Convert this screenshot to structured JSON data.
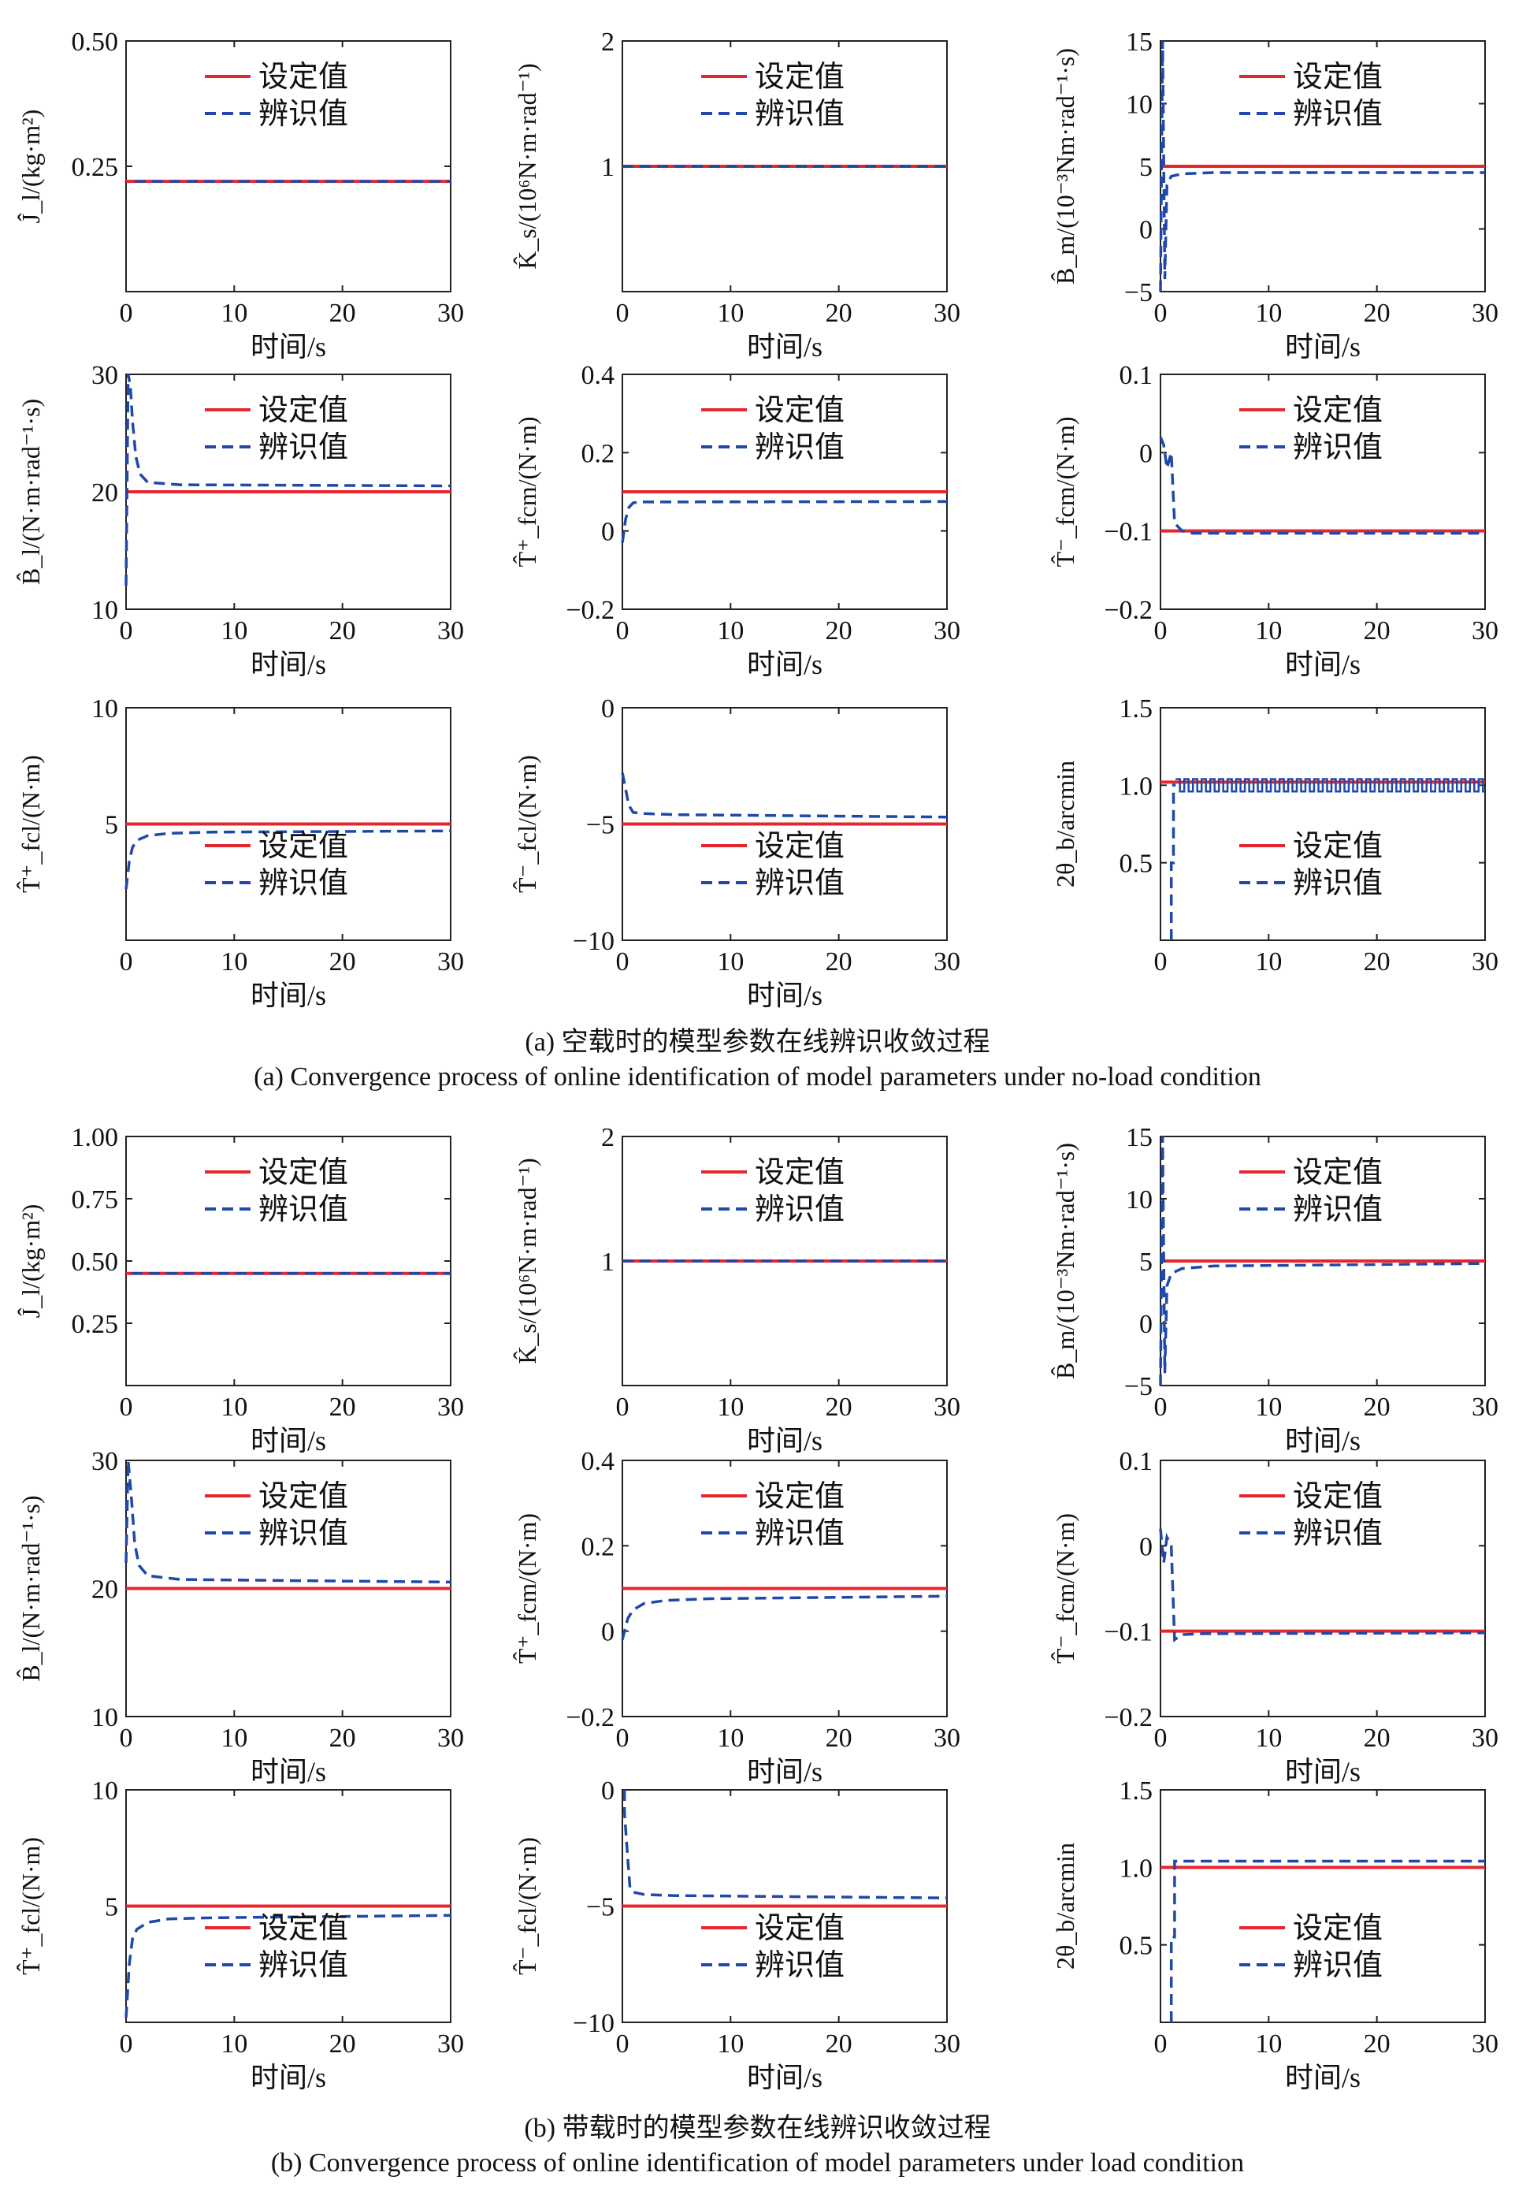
{
  "colors": {
    "set": "#e5262d",
    "ident": "#1f48a8",
    "axis": "#222222"
  },
  "legend": {
    "set_label": "设定值",
    "ident_label": "辨识值"
  },
  "captions": {
    "a_cn": "(a) 空载时的模型参数在线辨识收敛过程",
    "a_en": "(a) Convergence process of online identification of model parameters under no-load condition",
    "b_cn": "(b) 带载时的模型参数在线辨识收敛过程",
    "b_en": "(b) Convergence process of online identification of model parameters under load condition"
  },
  "chart_data": [
    {
      "id": "a1",
      "type": "line",
      "xlabel": "时间/s",
      "ylabel": "Ĵ_l/(kg·m²)",
      "xlim": [
        0,
        30
      ],
      "ylim": [
        0,
        0.5
      ],
      "xticks": [
        "0",
        "10",
        "20",
        "30"
      ],
      "yticks": [
        {
          "v": 0.25,
          "t": "0.25"
        },
        {
          "v": 0.5,
          "t": "0.50"
        }
      ],
      "legend_position": "top-center",
      "set_value": 0.22,
      "ident_series": {
        "x": [
          0.8,
          2,
          30
        ],
        "y": [
          0.22,
          0.22,
          0.22
        ]
      }
    },
    {
      "id": "a2",
      "type": "line",
      "xlabel": "时间/s",
      "ylabel": "K̂_s/(10⁶N·m·rad⁻¹)",
      "xlim": [
        0,
        30
      ],
      "ylim": [
        0,
        2
      ],
      "xticks": [
        "0",
        "10",
        "20",
        "30"
      ],
      "yticks": [
        {
          "v": 1,
          "t": "1"
        },
        {
          "v": 2,
          "t": "2"
        }
      ],
      "legend_position": "top-center",
      "set_value": 1.0,
      "ident_series": {
        "x": [
          0,
          30
        ],
        "y": [
          1.0,
          1.0
        ]
      }
    },
    {
      "id": "a3",
      "type": "line",
      "xlabel": "时间/s",
      "ylabel": "B̂_m/(10⁻³Nm·rad⁻¹·s)",
      "xlim": [
        0,
        30
      ],
      "ylim": [
        -5,
        15
      ],
      "xticks": [
        "0",
        "10",
        "20",
        "30"
      ],
      "yticks": [
        {
          "v": -5,
          "t": "−5"
        },
        {
          "v": 0,
          "t": "0"
        },
        {
          "v": 5,
          "t": "5"
        },
        {
          "v": 10,
          "t": "10"
        },
        {
          "v": 15,
          "t": "15"
        }
      ],
      "legend_position": "top-center",
      "set_value": 5,
      "ident_series": {
        "x": [
          0,
          0.2,
          0.4,
          0.6,
          1,
          2,
          5,
          30
        ],
        "y": [
          -5,
          15,
          -4,
          3.5,
          4.2,
          4.4,
          4.5,
          4.5
        ]
      }
    },
    {
      "id": "a4",
      "type": "line",
      "xlabel": "时间/s",
      "ylabel": "B̂_l/(N·m·rad⁻¹·s)",
      "xlim": [
        0,
        30
      ],
      "ylim": [
        10,
        30
      ],
      "xticks": [
        "0",
        "10",
        "20",
        "30"
      ],
      "yticks": [
        {
          "v": 10,
          "t": "10"
        },
        {
          "v": 20,
          "t": "20"
        },
        {
          "v": 30,
          "t": "30"
        }
      ],
      "legend_position": "top-center",
      "set_value": 20,
      "ident_series": {
        "x": [
          0,
          0.2,
          0.4,
          0.6,
          0.9,
          1.3,
          2,
          5,
          30
        ],
        "y": [
          12,
          30,
          29,
          26,
          23,
          21.5,
          20.8,
          20.6,
          20.5
        ]
      }
    },
    {
      "id": "a5",
      "type": "line",
      "xlabel": "时间/s",
      "ylabel": "T̂⁺_fcm/(N·m)",
      "xlim": [
        0,
        30
      ],
      "ylim": [
        -0.2,
        0.4
      ],
      "xticks": [
        "0",
        "10",
        "20",
        "30"
      ],
      "yticks": [
        {
          "v": -0.2,
          "t": "−0.2"
        },
        {
          "v": 0,
          "t": "0"
        },
        {
          "v": 0.2,
          "t": "0.2"
        },
        {
          "v": 0.4,
          "t": "0.4"
        }
      ],
      "legend_position": "top-center",
      "set_value": 0.1,
      "ident_series": {
        "x": [
          0,
          0.3,
          0.6,
          1,
          2,
          30
        ],
        "y": [
          -0.03,
          0.03,
          0.06,
          0.072,
          0.074,
          0.075
        ]
      }
    },
    {
      "id": "a6",
      "type": "line",
      "xlabel": "时间/s",
      "ylabel": "T̂⁻_fcm/(N·m)",
      "xlim": [
        0,
        30
      ],
      "ylim": [
        -0.2,
        0.1
      ],
      "xticks": [
        "0",
        "10",
        "20",
        "30"
      ],
      "yticks": [
        {
          "v": -0.2,
          "t": "−0.2"
        },
        {
          "v": -0.1,
          "t": "−0.1"
        },
        {
          "v": 0,
          "t": "0"
        },
        {
          "v": 0.1,
          "t": "0.1"
        }
      ],
      "legend_position": "top-center",
      "set_value": -0.1,
      "ident_series": {
        "x": [
          0,
          0.3,
          0.6,
          1,
          1.3,
          2,
          3,
          30
        ],
        "y": [
          0.02,
          0.01,
          -0.02,
          0,
          -0.09,
          -0.1,
          -0.103,
          -0.103
        ]
      }
    },
    {
      "id": "a7",
      "type": "line",
      "xlabel": "时间/s",
      "ylabel": "T̂⁺_fcl/(N·m)",
      "xlim": [
        0,
        30
      ],
      "ylim": [
        0,
        10
      ],
      "xticks": [
        "0",
        "10",
        "20",
        "30"
      ],
      "yticks": [
        {
          "v": 5,
          "t": "5"
        },
        {
          "v": 10,
          "t": "10"
        }
      ],
      "legend_position": "bottom-center",
      "set_value": 5,
      "ident_series": {
        "x": [
          0,
          0.3,
          0.6,
          1,
          2,
          4,
          8,
          30
        ],
        "y": [
          2.2,
          3.4,
          4.0,
          4.3,
          4.5,
          4.6,
          4.65,
          4.7
        ]
      }
    },
    {
      "id": "a8",
      "type": "line",
      "xlabel": "时间/s",
      "ylabel": "T̂⁻_fcl/(N·m)",
      "xlim": [
        0,
        30
      ],
      "ylim": [
        -10,
        0
      ],
      "xticks": [
        "0",
        "10",
        "20",
        "30"
      ],
      "yticks": [
        {
          "v": -10,
          "t": "−10"
        },
        {
          "v": -5,
          "t": "−5"
        },
        {
          "v": 0,
          "t": "0"
        }
      ],
      "legend_position": "bottom-center",
      "set_value": -5,
      "ident_series": {
        "x": [
          0,
          0.3,
          0.6,
          1,
          2,
          5,
          30
        ],
        "y": [
          -2.8,
          -3.5,
          -4.2,
          -4.5,
          -4.55,
          -4.6,
          -4.7
        ]
      }
    },
    {
      "id": "a9",
      "type": "line",
      "xlabel": "",
      "ylabel": "2θ_b/arcmin",
      "xlim": [
        0,
        30
      ],
      "ylim": [
        0,
        1.5
      ],
      "xticks": [
        "0",
        "10",
        "20",
        "30"
      ],
      "yticks": [
        {
          "v": 0.5,
          "t": "0.5"
        },
        {
          "v": 1,
          "t": "1.0"
        },
        {
          "v": 1.5,
          "t": "1.5"
        }
      ],
      "legend_position": "bottom-center",
      "set_value": 1.02,
      "ident_series": {
        "x": [
          1,
          1,
          1.2,
          1.2,
          1.4
        ],
        "y": [
          0,
          0.5,
          0.5,
          1.0,
          1.0
        ]
      },
      "ident_pulse": {
        "x_start": 1.4,
        "x_end": 30,
        "low": 0.96,
        "high": 1.04,
        "period": 0.8
      }
    },
    {
      "id": "b1",
      "type": "line",
      "xlabel": "时间/s",
      "ylabel": "Ĵ_l/(kg·m²)",
      "xlim": [
        0,
        30
      ],
      "ylim": [
        0,
        1
      ],
      "xticks": [
        "0",
        "10",
        "20",
        "30"
      ],
      "yticks": [
        {
          "v": 0.25,
          "t": "0.25"
        },
        {
          "v": 0.5,
          "t": "0.50"
        },
        {
          "v": 0.75,
          "t": "0.75"
        },
        {
          "v": 1,
          "t": "1.00"
        }
      ],
      "legend_position": "top-center",
      "set_value": 0.45,
      "ident_series": {
        "x": [
          0.5,
          30
        ],
        "y": [
          0.45,
          0.45
        ]
      }
    },
    {
      "id": "b2",
      "type": "line",
      "xlabel": "时间/s",
      "ylabel": "K̂_s/(10⁶N·m·rad⁻¹)",
      "xlim": [
        0,
        30
      ],
      "ylim": [
        0,
        2
      ],
      "xticks": [
        "0",
        "10",
        "20",
        "30"
      ],
      "yticks": [
        {
          "v": 1,
          "t": "1"
        },
        {
          "v": 2,
          "t": "2"
        }
      ],
      "legend_position": "top-center",
      "set_value": 1.0,
      "ident_series": {
        "x": [
          0,
          30
        ],
        "y": [
          1.0,
          1.0
        ]
      }
    },
    {
      "id": "b3",
      "type": "line",
      "xlabel": "时间/s",
      "ylabel": "B̂_m/(10⁻³Nm·rad⁻¹·s)",
      "xlim": [
        0,
        30
      ],
      "ylim": [
        -5,
        15
      ],
      "xticks": [
        "0",
        "10",
        "20",
        "30"
      ],
      "yticks": [
        {
          "v": -5,
          "t": "−5"
        },
        {
          "v": 0,
          "t": "0"
        },
        {
          "v": 5,
          "t": "5"
        },
        {
          "v": 10,
          "t": "10"
        },
        {
          "v": 15,
          "t": "15"
        }
      ],
      "legend_position": "top-center",
      "set_value": 5,
      "ident_series": {
        "x": [
          0,
          0.2,
          0.4,
          0.6,
          1,
          2,
          5,
          30
        ],
        "y": [
          -5,
          15,
          -4,
          3,
          4,
          4.4,
          4.6,
          4.8
        ]
      }
    },
    {
      "id": "b4",
      "type": "line",
      "xlabel": "时间/s",
      "ylabel": "B̂_l/(N·m·rad⁻¹·s)",
      "xlim": [
        0,
        30
      ],
      "ylim": [
        10,
        30
      ],
      "xticks": [
        "0",
        "10",
        "20",
        "30"
      ],
      "yticks": [
        {
          "v": 10,
          "t": "10"
        },
        {
          "v": 20,
          "t": "20"
        },
        {
          "v": 30,
          "t": "30"
        }
      ],
      "legend_position": "top-center",
      "set_value": 20,
      "ident_series": {
        "x": [
          0,
          0.2,
          0.5,
          0.8,
          1.2,
          2,
          5,
          30
        ],
        "y": [
          22,
          30,
          27,
          23.5,
          21.8,
          21,
          20.7,
          20.5
        ]
      }
    },
    {
      "id": "b5",
      "type": "line",
      "xlabel": "时间/s",
      "ylabel": "T̂⁺_fcm/(N·m)",
      "xlim": [
        0,
        30
      ],
      "ylim": [
        -0.2,
        0.4
      ],
      "xticks": [
        "0",
        "10",
        "20",
        "30"
      ],
      "yticks": [
        {
          "v": -0.2,
          "t": "−0.2"
        },
        {
          "v": 0,
          "t": "0"
        },
        {
          "v": 0.2,
          "t": "0.2"
        },
        {
          "v": 0.4,
          "t": "0.4"
        }
      ],
      "legend_position": "top-center",
      "set_value": 0.1,
      "ident_series": {
        "x": [
          0,
          0.5,
          1,
          2,
          4,
          8,
          30
        ],
        "y": [
          -0.02,
          0.03,
          0.05,
          0.065,
          0.072,
          0.076,
          0.082
        ]
      }
    },
    {
      "id": "b6",
      "type": "line",
      "xlabel": "时间/s",
      "ylabel": "T̂⁻_fcm/(N·m)",
      "xlim": [
        0,
        30
      ],
      "ylim": [
        -0.2,
        0.1
      ],
      "xticks": [
        "0",
        "10",
        "20",
        "30"
      ],
      "yticks": [
        {
          "v": -0.2,
          "t": "−0.2"
        },
        {
          "v": -0.1,
          "t": "−0.1"
        },
        {
          "v": 0,
          "t": "0"
        },
        {
          "v": 0.1,
          "t": "0.1"
        }
      ],
      "legend_position": "top-center",
      "set_value": -0.1,
      "ident_series": {
        "x": [
          0,
          0.3,
          0.6,
          1,
          1.3,
          2,
          4,
          30
        ],
        "y": [
          0.02,
          -0.02,
          0.01,
          0,
          -0.11,
          -0.104,
          -0.103,
          -0.102
        ]
      }
    },
    {
      "id": "b7",
      "type": "line",
      "xlabel": "时间/s",
      "ylabel": "T̂⁺_fcl/(N·m)",
      "xlim": [
        0,
        30
      ],
      "ylim": [
        0,
        10
      ],
      "xticks": [
        "0",
        "10",
        "20",
        "30"
      ],
      "yticks": [
        {
          "v": 5,
          "t": "5"
        },
        {
          "v": 10,
          "t": "10"
        }
      ],
      "legend_position": "bottom-center",
      "set_value": 5,
      "ident_series": {
        "x": [
          0,
          0.3,
          0.6,
          1,
          2,
          4,
          8,
          30
        ],
        "y": [
          0.2,
          2.5,
          3.6,
          4.0,
          4.3,
          4.45,
          4.5,
          4.6
        ]
      }
    },
    {
      "id": "b8",
      "type": "line",
      "xlabel": "时间/s",
      "ylabel": "T̂⁻_fcl/(N·m)",
      "xlim": [
        0,
        30
      ],
      "ylim": [
        -10,
        0
      ],
      "xticks": [
        "0",
        "10",
        "20",
        "30"
      ],
      "yticks": [
        {
          "v": -10,
          "t": "−10"
        },
        {
          "v": -5,
          "t": "−5"
        },
        {
          "v": 0,
          "t": "0"
        }
      ],
      "legend_position": "bottom-center",
      "set_value": -5,
      "ident_series": {
        "x": [
          0.2,
          0.2,
          0.5,
          0.7,
          1,
          2,
          5,
          30
        ],
        "y": [
          0,
          -1,
          -3,
          -4.2,
          -4.4,
          -4.5,
          -4.55,
          -4.65
        ]
      }
    },
    {
      "id": "b9",
      "type": "line",
      "xlabel": "时间/s",
      "ylabel": "2θ_b/arcmin",
      "xlim": [
        0,
        30
      ],
      "ylim": [
        0,
        1.5
      ],
      "xticks": [
        "0",
        "10",
        "20",
        "30"
      ],
      "yticks": [
        {
          "v": 0.5,
          "t": "0.5"
        },
        {
          "v": 1,
          "t": "1.0"
        },
        {
          "v": 1.5,
          "t": "1.5"
        }
      ],
      "legend_position": "bottom-center",
      "set_value": 1.0,
      "ident_series": {
        "x": [
          1,
          1,
          1.3,
          1.3,
          30
        ],
        "y": [
          0,
          0.55,
          0.55,
          1.04,
          1.04
        ]
      }
    }
  ]
}
